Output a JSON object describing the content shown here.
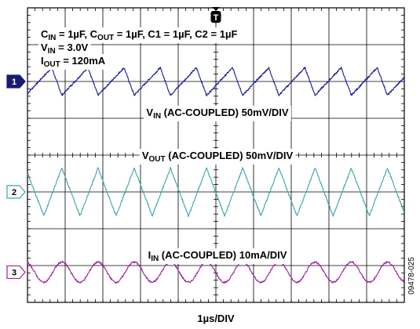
{
  "chart_data": {
    "type": "line",
    "title": "",
    "xlabel": "1µs/DIV",
    "figure_id": "09478-025",
    "trigger_marker": "T",
    "grid": true,
    "divisions": {
      "x": 10,
      "y": 8
    },
    "conditions": [
      {
        "parts": [
          {
            "t": "C",
            "s": "IN"
          },
          {
            "t": " = 1µF, C"
          },
          {
            "t": "",
            "s": "OUT"
          },
          {
            "t": " = 1µF, C1 = 1µF, C2 = 1µF"
          }
        ]
      },
      {
        "parts": [
          {
            "t": "V",
            "s": "IN"
          },
          {
            "t": " = 3.0V"
          }
        ]
      },
      {
        "parts": [
          {
            "t": "I",
            "s": "OUT"
          },
          {
            "t": " = 120mA"
          }
        ]
      }
    ],
    "series": [
      {
        "channel": "1",
        "label_main": "V",
        "label_sub": "IN",
        "label_rest": " (AC-COUPLED) 50mV/DIV",
        "color": "#1a1a9c",
        "marker_style": "filled",
        "baseline_div": 6,
        "period_div": 0.96,
        "phase_div": 0.05,
        "shape": "sawtooth",
        "peak_to_peak_div": 0.75
      },
      {
        "channel": "2",
        "label_main": "V",
        "label_sub": "OUT",
        "label_rest": " (AC-COUPLED) 50mV/DIV",
        "color": "#3aa6a8",
        "marker_style": "outline",
        "baseline_div": 3,
        "period_div": 0.96,
        "phase_div": 0.55,
        "shape": "triangle",
        "peak_to_peak_div": 1.3
      },
      {
        "channel": "3",
        "label_main": "I",
        "label_sub": "IN",
        "label_rest": " (AC-COUPLED) 10mA/DIV",
        "color": "#a0209c",
        "marker_style": "outline",
        "baseline_div": 0.82,
        "period_div": 0.96,
        "phase_div": 0.3,
        "shape": "sine",
        "peak_to_peak_div": 0.55
      }
    ]
  }
}
